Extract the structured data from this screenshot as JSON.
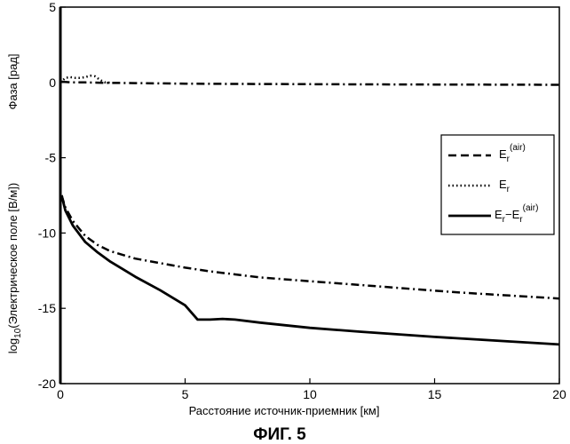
{
  "chart_data": {
    "type": "line",
    "xlabel": "Расстояние источник-приемник [км]",
    "ylabel_upper": "Фаза [рад]",
    "ylabel_lower_prefix": "log",
    "ylabel_lower_sub": "10",
    "ylabel_lower_rest": "(Электрическое поле [В/м])",
    "caption": "ФИГ. 5",
    "xlim": [
      0,
      20
    ],
    "ylim": [
      -20,
      5
    ],
    "x_ticks": [
      "0",
      "5",
      "10",
      "15",
      "20"
    ],
    "y_ticks": [
      "5",
      "0",
      "-5",
      "-10",
      "-15",
      "-20"
    ],
    "grid": false,
    "legend_position": "right",
    "legend": [
      {
        "base": "E",
        "sub": "r",
        "sup": "(air)",
        "style": "dashed"
      },
      {
        "base": "E",
        "sub": "r",
        "sup": "",
        "style": "dotted"
      },
      {
        "base": "E",
        "sub": "r",
        "mid": "−E",
        "sub2": "r",
        "sup": "(air)",
        "style": "solid"
      }
    ],
    "series": [
      {
        "style": "dashdot",
        "x": [
          0.05,
          0.5,
          1,
          1.5,
          2,
          3,
          5,
          7,
          10,
          12,
          15,
          17,
          20
        ],
        "y": [
          0.05,
          0.0,
          0.0,
          -0.02,
          -0.03,
          -0.05,
          -0.08,
          -0.1,
          -0.12,
          -0.13,
          -0.14,
          -0.15,
          -0.16
        ]
      },
      {
        "style": "dotted",
        "x": [
          0.0,
          0.2,
          0.4,
          0.6,
          0.8,
          1.0,
          1.2,
          1.4,
          1.6,
          1.8,
          2.0
        ],
        "y": [
          0.0,
          0.3,
          0.35,
          0.3,
          0.3,
          0.35,
          0.45,
          0.4,
          0.15,
          0.0,
          -0.02
        ]
      },
      {
        "style": "dashdot",
        "x": [
          0.05,
          0.2,
          0.5,
          1,
          1.5,
          2,
          3,
          4,
          5,
          6,
          7,
          8,
          10,
          12,
          14,
          16,
          18,
          20
        ],
        "y": [
          -7.5,
          -8.3,
          -9.2,
          -10.2,
          -10.8,
          -11.2,
          -11.7,
          -12.0,
          -12.3,
          -12.55,
          -12.75,
          -12.95,
          -13.2,
          -13.45,
          -13.7,
          -13.95,
          -14.15,
          -14.35
        ]
      },
      {
        "style": "solid",
        "x": [
          0.05,
          0.2,
          0.5,
          1,
          1.5,
          2,
          2.5,
          3,
          4,
          5,
          5.5,
          6,
          6.5,
          7,
          8,
          10,
          12,
          15,
          18,
          20
        ],
        "y": [
          -7.5,
          -8.5,
          -9.5,
          -10.6,
          -11.3,
          -11.9,
          -12.4,
          -12.9,
          -13.8,
          -14.8,
          -15.75,
          -15.75,
          -15.7,
          -15.75,
          -15.95,
          -16.3,
          -16.55,
          -16.9,
          -17.2,
          -17.4
        ]
      }
    ]
  }
}
